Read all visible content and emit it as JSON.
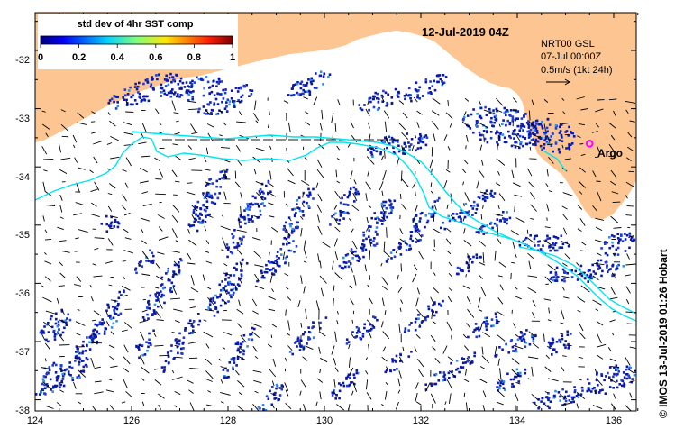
{
  "map": {
    "date_label": "12-Jul-2019 04Z",
    "current_source_lines": [
      "NRT00 GSL",
      "07-Jul 00:00Z"
    ],
    "scale_vector_label": "0.5m/s (1kt 24h)",
    "credit": "© IMOS 13-Jul-2019 01:26 Hobart",
    "argo_label": "Argo",
    "land_color": "#fcc591",
    "drifter_track_color": "#00e5f0",
    "colorbar": {
      "title": "std dev of 4hr SST comp",
      "ticks": [
        "0",
        "0.2",
        "0.4",
        "0.6",
        "0.8",
        "1"
      ],
      "colormap": "jet"
    },
    "lon_ticks": [
      "124",
      "126",
      "128",
      "130",
      "132",
      "134",
      "136"
    ],
    "lat_ticks": [
      "-32",
      "-33",
      "-34",
      "-35",
      "-36",
      "-37",
      "-38"
    ]
  },
  "chart_data": {
    "type": "heatmap",
    "title": "std dev of 4hr SST comp",
    "x_range": [
      124,
      136.5
    ],
    "y_range": [
      -38.05,
      -31.35
    ],
    "x_ticks": [
      124,
      126,
      128,
      130,
      132,
      134,
      136
    ],
    "y_ticks": [
      -32,
      -33,
      -34,
      -35,
      -36,
      -37,
      -38
    ],
    "colorbar_range": [
      0,
      1
    ],
    "argo_float": {
      "lon": 135.5,
      "lat": -33.6
    }
  }
}
